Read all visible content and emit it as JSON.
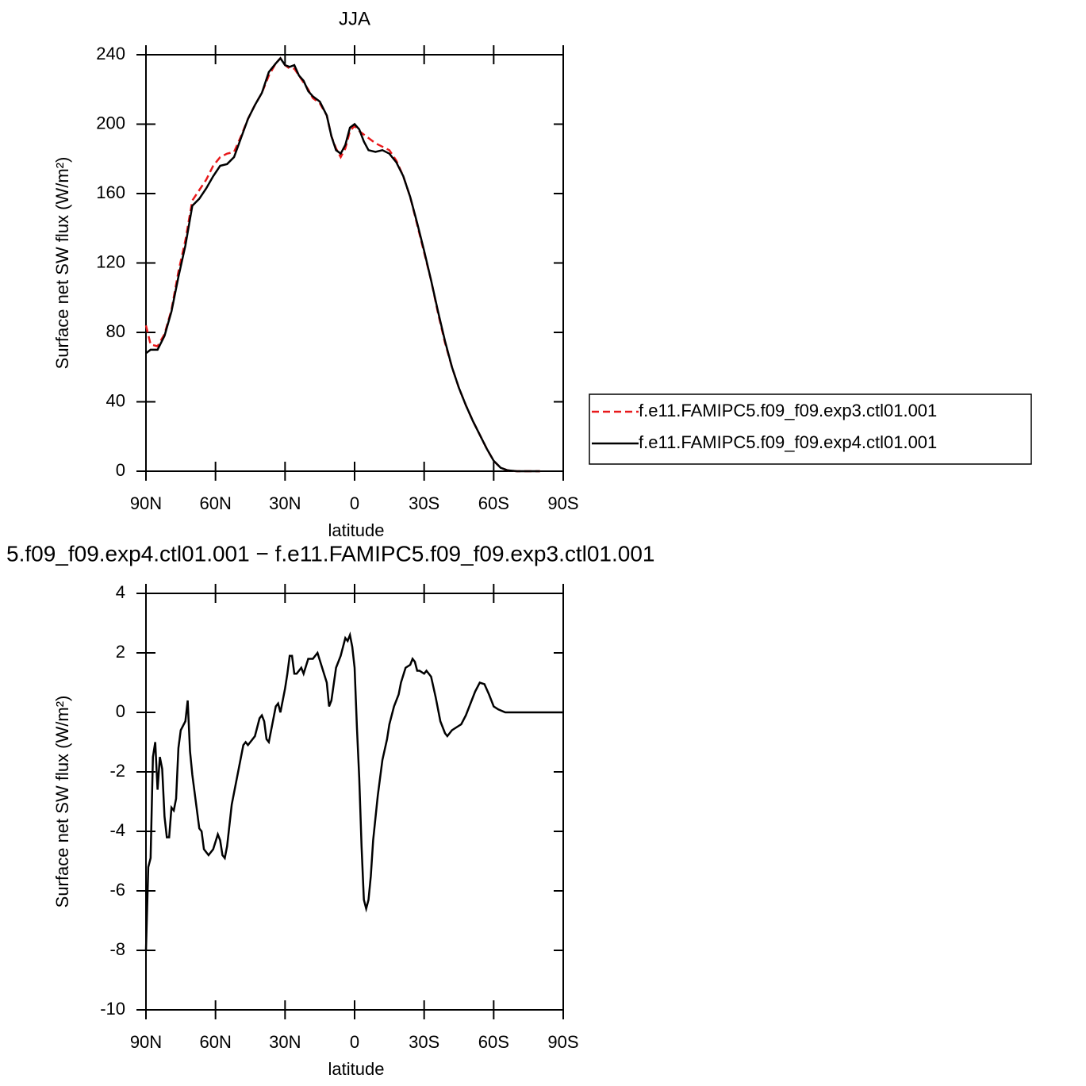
{
  "chart_data": [
    {
      "type": "line",
      "title": "JJA",
      "xlabel": "latitude",
      "ylabel": "Surface net SW flux (W/m²)",
      "x": [
        90,
        88,
        85,
        82,
        79,
        76,
        73,
        70,
        67,
        64,
        61,
        58,
        55,
        52,
        49,
        46,
        43,
        40,
        37,
        34,
        32,
        30,
        28,
        26,
        24,
        22,
        20,
        18,
        15,
        12,
        10,
        8,
        6,
        4,
        2,
        0,
        -2,
        -4,
        -6,
        -9,
        -12,
        -15,
        -18,
        -21,
        -24,
        -27,
        -30,
        -33,
        -36,
        -39,
        -42,
        -45,
        -48,
        -51,
        -54,
        -57,
        -60,
        -63,
        -66,
        -70,
        -75,
        -80
      ],
      "series": [
        {
          "name": "f.e11.FAMIPC5.f09_f09.exp3.ctl01.001",
          "color": "#e8191b",
          "linestyle": "dashed",
          "values": [
            84,
            73,
            72,
            79,
            93,
            115,
            133,
            156,
            162,
            168,
            176,
            181,
            183,
            184,
            193,
            203,
            211,
            218,
            228,
            235,
            238,
            234,
            232,
            232,
            228,
            224,
            220,
            215,
            212,
            205,
            193,
            186,
            181,
            186,
            196,
            199,
            196,
            194,
            192,
            189,
            187,
            185,
            179,
            170,
            158,
            142,
            126,
            110,
            91,
            74,
            60,
            48,
            38,
            29,
            21,
            13,
            6,
            2,
            0.5,
            0,
            0,
            0
          ]
        },
        {
          "name": "f.e11.FAMIPC5.f09_f09.exp4.ctl01.001",
          "color": "#000000",
          "linestyle": "solid",
          "values": [
            68,
            70,
            70,
            78,
            92,
            112,
            130,
            153,
            157,
            163,
            170,
            176,
            177,
            181,
            192,
            203,
            211,
            218,
            230,
            235,
            238,
            234,
            233,
            234,
            228,
            225,
            219,
            216,
            213,
            205,
            193,
            185,
            183,
            188,
            198,
            200,
            197,
            190,
            185,
            184,
            185,
            183,
            178,
            170,
            158,
            143,
            127,
            110,
            92,
            75,
            60,
            48,
            38,
            29,
            21,
            13,
            6,
            2,
            0.5,
            0,
            0,
            0
          ]
        }
      ],
      "xlim": [
        90,
        -90
      ],
      "ylim": [
        0,
        240
      ],
      "xticks": [
        {
          "value": 90,
          "label": "90N"
        },
        {
          "value": 60,
          "label": "60N"
        },
        {
          "value": 30,
          "label": "30N"
        },
        0,
        {
          "value": -30,
          "label": "30S"
        },
        {
          "value": -60,
          "label": "60S"
        },
        {
          "value": -90,
          "label": "90S"
        }
      ],
      "yticks": [
        0,
        40,
        80,
        120,
        160,
        200,
        240
      ],
      "legend": "right"
    },
    {
      "type": "line",
      "title": "5.f09_f09.exp4.ctl01.001 − f.e11.FAMIPC5.f09_f09.exp3.ctl01.001",
      "xlabel": "latitude",
      "ylabel": "Surface net SW flux (W/m²)",
      "x": [
        90,
        89,
        88,
        87,
        86,
        85,
        84,
        83,
        82,
        81,
        80,
        79,
        78,
        77,
        76,
        75,
        73,
        72,
        71,
        70,
        68,
        67,
        66,
        65,
        63,
        61,
        59,
        58,
        57,
        56,
        55,
        53,
        51,
        49,
        48,
        47,
        46,
        45,
        43,
        41,
        40,
        39,
        38,
        37,
        36,
        34,
        33,
        32,
        30,
        29,
        28,
        27,
        26,
        25,
        23,
        22,
        20,
        18,
        16,
        14,
        12,
        11,
        10,
        8,
        6,
        4,
        3,
        2,
        1,
        0,
        -1,
        -2,
        -3,
        -4,
        -5,
        -6,
        -7,
        -8,
        -10,
        -12,
        -14,
        -15,
        -17,
        -19,
        -20,
        -22,
        -24,
        -25,
        -26,
        -27,
        -28,
        -30,
        -31,
        -33,
        -35,
        -37,
        -39,
        -40,
        -42,
        -44,
        -46,
        -48,
        -50,
        -52,
        -54,
        -56,
        -58,
        -60,
        -62,
        -65,
        -70,
        -80,
        -90
      ],
      "series": [
        {
          "color": "#000000",
          "linestyle": "solid",
          "values": [
            -8,
            -5.2,
            -4.9,
            -1.5,
            -1,
            -2.6,
            -1.5,
            -1.9,
            -3.5,
            -4.2,
            -4.2,
            -3.2,
            -3.3,
            -2.9,
            -1.2,
            -0.6,
            -0.3,
            0.4,
            -1.3,
            -2.1,
            -3.3,
            -3.9,
            -4,
            -4.6,
            -4.8,
            -4.6,
            -4.1,
            -4.3,
            -4.8,
            -4.9,
            -4.5,
            -3.1,
            -2.3,
            -1.5,
            -1.1,
            -1,
            -1.1,
            -1,
            -0.8,
            -0.2,
            -0.1,
            -0.3,
            -0.9,
            -1,
            -0.6,
            0.2,
            0.3,
            0,
            0.8,
            1.3,
            1.9,
            1.9,
            1.3,
            1.3,
            1.5,
            1.3,
            1.8,
            1.8,
            2,
            1.5,
            1,
            0.2,
            0.4,
            1.5,
            1.9,
            2.5,
            2.4,
            2.6,
            2.2,
            1.5,
            -0.5,
            -2.2,
            -4.5,
            -6.3,
            -6.6,
            -6.3,
            -5.5,
            -4.3,
            -2.8,
            -1.6,
            -0.9,
            -0.4,
            0.2,
            0.6,
            1,
            1.5,
            1.6,
            1.8,
            1.7,
            1.4,
            1.4,
            1.3,
            1.4,
            1.2,
            0.5,
            -0.3,
            -0.7,
            -0.8,
            -0.6,
            -0.5,
            -0.4,
            -0.1,
            0.3,
            0.7,
            1,
            0.95,
            0.6,
            0.2,
            0.1,
            0,
            0,
            0,
            0
          ]
        }
      ],
      "xlim": [
        90,
        -90
      ],
      "ylim": [
        -10,
        4
      ],
      "xticks": [
        {
          "value": 90,
          "label": "90N"
        },
        {
          "value": 60,
          "label": "60N"
        },
        {
          "value": 30,
          "label": "30N"
        },
        0,
        {
          "value": -30,
          "label": "30S"
        },
        {
          "value": -60,
          "label": "60S"
        },
        {
          "value": -90,
          "label": "90S"
        }
      ],
      "yticks": [
        -10,
        -8,
        -6,
        -4,
        -2,
        0,
        2,
        4
      ]
    }
  ]
}
